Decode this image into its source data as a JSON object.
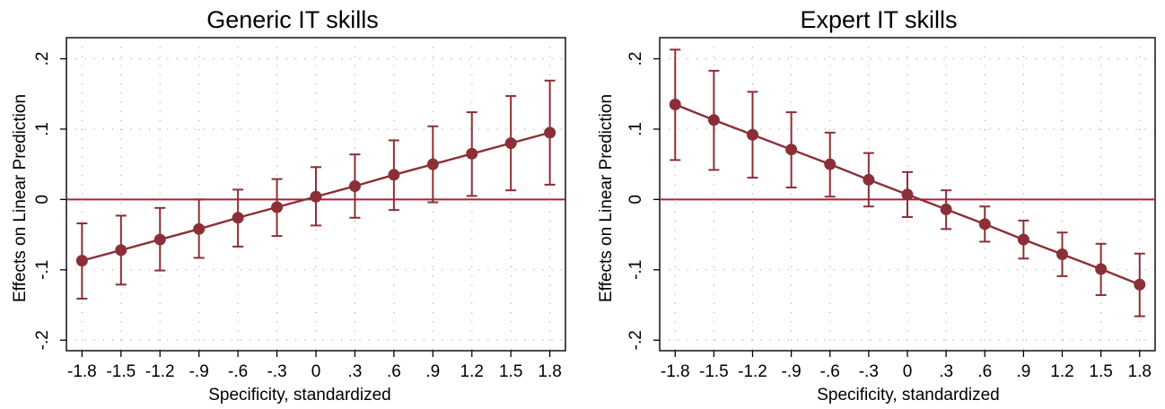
{
  "chart_data": [
    {
      "type": "line",
      "title": "Generic IT skills",
      "xlabel": "Specificity, standardized",
      "ylabel": "Effects on Linear Prediction",
      "x": [
        -1.8,
        -1.5,
        -1.2,
        -0.9,
        -0.6,
        -0.3,
        0,
        0.3,
        0.6,
        0.9,
        1.2,
        1.5,
        1.8
      ],
      "x_tick_labels": [
        "-1.8",
        "-1.5",
        "-1.2",
        "-.9",
        "-.6",
        "-.3",
        "0",
        ".3",
        ".6",
        ".9",
        "1.2",
        "1.5",
        "1.8"
      ],
      "y_ticks": [
        -0.2,
        -0.1,
        0,
        0.1,
        0.2
      ],
      "y_tick_labels": [
        "-.2",
        "-.1",
        "0",
        ".1",
        ".2"
      ],
      "ylim": [
        -0.215,
        0.23
      ],
      "xlim": [
        -1.92,
        1.92
      ],
      "series": [
        {
          "values": [
            -0.087,
            -0.072,
            -0.057,
            -0.042,
            -0.026,
            -0.011,
            0.004,
            0.019,
            0.035,
            0.05,
            0.065,
            0.08,
            0.095
          ],
          "ci_low": [
            -0.141,
            -0.121,
            -0.101,
            -0.083,
            -0.067,
            -0.052,
            -0.037,
            -0.026,
            -0.015,
            -0.004,
            0.005,
            0.013,
            0.021
          ],
          "ci_high": [
            -0.034,
            -0.023,
            -0.012,
            0.0,
            0.014,
            0.029,
            0.046,
            0.064,
            0.084,
            0.104,
            0.124,
            0.147,
            0.169
          ]
        }
      ],
      "reference_line_y": 0,
      "grid": true,
      "colors": {
        "series": "#8b2f36",
        "reference": "#b01e3c",
        "grid": "#b0b0b0"
      }
    },
    {
      "type": "line",
      "title": "Expert IT skills",
      "xlabel": "Specificity, standardized",
      "ylabel": "Effects on Linear Prediction",
      "x": [
        -1.8,
        -1.5,
        -1.2,
        -0.9,
        -0.6,
        -0.3,
        0,
        0.3,
        0.6,
        0.9,
        1.2,
        1.5,
        1.8
      ],
      "x_tick_labels": [
        "-1.8",
        "-1.5",
        "-1.2",
        "-.9",
        "-.6",
        "-.3",
        "0",
        ".3",
        ".6",
        ".9",
        "1.2",
        "1.5",
        "1.8"
      ],
      "y_ticks": [
        -0.2,
        -0.1,
        0,
        0.1,
        0.2
      ],
      "y_tick_labels": [
        "-.2",
        "-.1",
        "0",
        ".1",
        ".2"
      ],
      "ylim": [
        -0.215,
        0.23
      ],
      "xlim": [
        -1.92,
        1.92
      ],
      "series": [
        {
          "values": [
            0.135,
            0.113,
            0.092,
            0.071,
            0.05,
            0.028,
            0.007,
            -0.014,
            -0.035,
            -0.057,
            -0.078,
            -0.099,
            -0.121
          ],
          "ci_low": [
            0.056,
            0.042,
            0.031,
            0.017,
            0.004,
            -0.01,
            -0.025,
            -0.042,
            -0.06,
            -0.084,
            -0.109,
            -0.136,
            -0.166
          ],
          "ci_high": [
            0.213,
            0.183,
            0.153,
            0.124,
            0.095,
            0.066,
            0.039,
            0.013,
            -0.01,
            -0.03,
            -0.047,
            -0.063,
            -0.077
          ]
        }
      ],
      "reference_line_y": 0,
      "grid": true,
      "colors": {
        "series": "#8b2f36",
        "reference": "#b01e3c",
        "grid": "#b0b0b0"
      }
    }
  ]
}
